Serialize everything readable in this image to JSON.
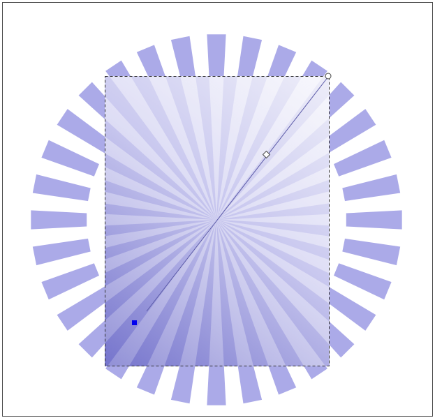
{
  "canvas": {
    "ray_count": 32,
    "colors": {
      "ray": "#abaae8",
      "gradient_light": "#eeeef9",
      "gradient_dark": "#7574cc",
      "border": "#4a4a4a",
      "handle_fill": "#ffffff",
      "handle_stroke": "#404040",
      "node_marker": "#0000ee"
    },
    "icons": {
      "gradient_start_handle": "circle-handle-icon",
      "gradient_mid_handle": "diamond-handle-icon",
      "node_marker": "square-node-icon"
    }
  }
}
